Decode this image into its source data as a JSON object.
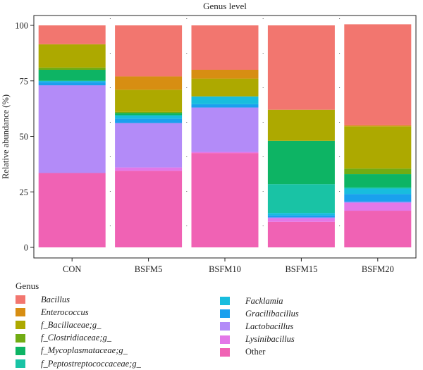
{
  "chart_data": {
    "type": "bar",
    "stacked": true,
    "title": "Genus level",
    "ylabel": "Relative abundance (%)",
    "xlabel": "",
    "ylim": [
      0,
      100
    ],
    "yticks": [
      0,
      25,
      50,
      75,
      100
    ],
    "categories": [
      "CON",
      "BSFM5",
      "BSFM10",
      "BSFM15",
      "BSFM20"
    ],
    "legend_title": "Genus",
    "legend_position": "bottom",
    "series": [
      {
        "name": "Other",
        "color": "#F062B4",
        "italic": false,
        "values": [
          33.5,
          34.5,
          42.5,
          11.5,
          16.5
        ]
      },
      {
        "name": "Lysinibacillus",
        "color": "#E377E8",
        "italic": true,
        "values": [
          0,
          1.5,
          0.5,
          1.5,
          3.5
        ]
      },
      {
        "name": "Lactobacillus",
        "color": "#B38BF8",
        "italic": true,
        "values": [
          39.5,
          20.0,
          20.0,
          0.5,
          0.5
        ]
      },
      {
        "name": "Gracilibacillus",
        "color": "#1AA0EE",
        "italic": true,
        "values": [
          1.5,
          2.0,
          1.5,
          1.0,
          3.5
        ]
      },
      {
        "name": "Facklamia",
        "color": "#18BDDE",
        "italic": true,
        "values": [
          0.5,
          1.5,
          3.5,
          1.0,
          2.5
        ]
      },
      {
        "name": "f_Peptostreptococcaceae;g_",
        "color": "#19C3A5",
        "italic": true,
        "values": [
          0,
          0,
          0,
          13.0,
          0.5
        ]
      },
      {
        "name": "f_Mycoplasmataceae;g_",
        "color": "#0DB464",
        "italic": true,
        "values": [
          5.0,
          1.0,
          0,
          19.5,
          6.0
        ]
      },
      {
        "name": "f_Clostridiaceae;g_",
        "color": "#71AC13",
        "italic": true,
        "values": [
          1.0,
          0.5,
          0,
          0,
          2.5
        ]
      },
      {
        "name": "f_Bacillaceae;g_",
        "color": "#ADA900",
        "italic": true,
        "values": [
          10.5,
          10.0,
          8.0,
          14.0,
          19.0
        ]
      },
      {
        "name": "Enterococcus",
        "color": "#D78E12",
        "italic": true,
        "values": [
          0,
          6.0,
          4.0,
          0,
          0.5
        ]
      },
      {
        "name": "Bacillus",
        "color": "#F2766F",
        "italic": true,
        "values": [
          8.5,
          23.0,
          20.0,
          38.0,
          45.5
        ]
      }
    ]
  }
}
